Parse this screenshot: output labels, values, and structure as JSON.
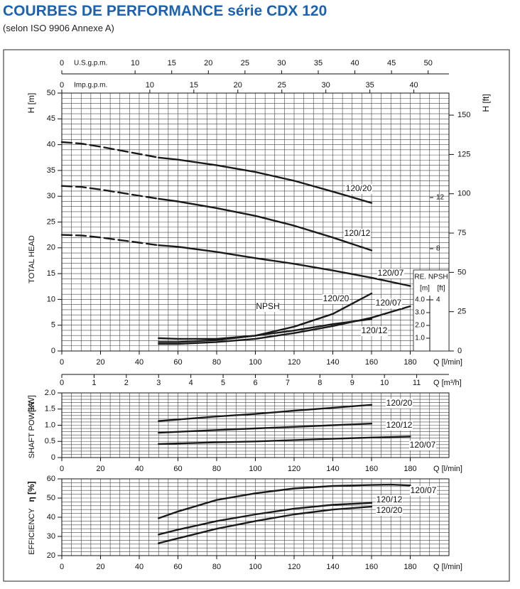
{
  "title": "COURBES DE PERFORMANCE série CDX 120",
  "subtitle": "(selon ISO 9906 Annexe A)",
  "chart_data": [
    {
      "type": "line",
      "ylabel": "H [m]",
      "ylabel2": "H [ft]",
      "side_label": "TOTAL HEAD",
      "xlabel": "Q [l/min]",
      "xlim": [
        0,
        200
      ],
      "xticks": [
        0,
        20,
        40,
        60,
        80,
        100,
        120,
        140,
        160,
        180
      ],
      "ylim": [
        0,
        50
      ],
      "yticks": [
        0,
        5,
        10,
        15,
        20,
        25,
        30,
        35,
        40,
        45,
        50
      ],
      "grid": {
        "x_step": 5,
        "y_step": 1
      },
      "ft_axis": {
        "lim": [
          0,
          164.04
        ],
        "ticks": [
          0,
          25,
          50,
          75,
          100,
          125,
          150
        ]
      },
      "top_axes": [
        {
          "label": "U.S.g.p.m.",
          "lim": [
            0,
            52.84
          ],
          "ticks": [
            0,
            10,
            15,
            20,
            25,
            30,
            35,
            40,
            45,
            50
          ]
        },
        {
          "label": "Imp.g.p.m.",
          "lim": [
            0,
            43.99
          ],
          "ticks": [
            0,
            10,
            15,
            20,
            25,
            30,
            35,
            40
          ]
        }
      ],
      "m3h_axis": {
        "label": "Q [m³/h]",
        "lim": [
          0,
          12
        ],
        "ticks": [
          0,
          1,
          2,
          3,
          4,
          5,
          6,
          7,
          8,
          9,
          10,
          11
        ]
      },
      "series": [
        {
          "name": "120/20",
          "color": "#1a1a1a",
          "x": [
            50,
            60,
            80,
            100,
            120,
            140,
            160
          ],
          "values": [
            37.5,
            37.1,
            36.0,
            34.7,
            33.0,
            30.9,
            28.7
          ],
          "extrapolated_x": [
            0,
            10,
            20,
            30,
            40,
            50
          ],
          "extrapolated_values": [
            40.5,
            40.2,
            39.6,
            38.9,
            38.2,
            37.5
          ]
        },
        {
          "name": "120/12",
          "color": "#1a1a1a",
          "x": [
            50,
            60,
            80,
            100,
            120,
            140,
            160
          ],
          "values": [
            29.5,
            29.0,
            27.7,
            26.2,
            24.3,
            22.0,
            19.5
          ],
          "extrapolated_x": [
            0,
            10,
            20,
            30,
            40,
            50
          ],
          "extrapolated_values": [
            32.0,
            31.8,
            31.3,
            30.7,
            30.1,
            29.5
          ]
        },
        {
          "name": "120/07",
          "color": "#1a1a1a",
          "x": [
            50,
            60,
            80,
            100,
            120,
            140,
            160,
            180
          ],
          "values": [
            20.5,
            20.2,
            19.2,
            18.0,
            16.9,
            15.6,
            14.2,
            12.6
          ],
          "extrapolated_x": [
            0,
            10,
            20,
            30,
            40,
            50
          ],
          "extrapolated_values": [
            22.5,
            22.4,
            22.0,
            21.5,
            21.0,
            20.5
          ]
        }
      ],
      "npsh": {
        "label": "NPSH",
        "axis_title": "RE. NPSH",
        "m_label": "[m]",
        "ft_label": "[ft]",
        "ylim": [
          0,
          4
        ],
        "yticks": [
          {
            "value": 1,
            "label": "1.0"
          },
          {
            "value": 2,
            "label": "2.0"
          },
          {
            "value": 3,
            "label": "3.0"
          },
          {
            "value": 4,
            "label": "4.0"
          }
        ],
        "ft_lim": [
          0,
          13.12
        ],
        "ft_ticks": [
          4,
          8,
          12
        ],
        "series": [
          {
            "name": "120/20",
            "color": "#1a1a1a",
            "x": [
              50,
              60,
              80,
              100,
              120,
              140,
              160
            ],
            "values": [
              0.7,
              0.7,
              0.85,
              1.2,
              1.9,
              2.9,
              4.5
            ]
          },
          {
            "name": "120/07",
            "color": "#1a1a1a",
            "x": [
              50,
              60,
              80,
              100,
              120,
              140,
              160,
              180
            ],
            "values": [
              0.55,
              0.55,
              0.7,
              0.95,
              1.4,
              1.95,
              2.6,
              3.5
            ]
          },
          {
            "name": "120/12",
            "color": "#1a1a1a",
            "x": [
              50,
              60,
              80,
              100,
              120,
              140,
              160
            ],
            "values": [
              1.0,
              0.95,
              0.95,
              1.2,
              1.6,
              2.1,
              2.5
            ]
          }
        ]
      }
    },
    {
      "type": "line",
      "ylabel": "[kW]",
      "side_label": "SHAFT POWER",
      "xlabel": "Q [l/min]",
      "xlim": [
        0,
        200
      ],
      "xticks": [
        0,
        20,
        40,
        60,
        80,
        100,
        120,
        140,
        160,
        180
      ],
      "ylim": [
        0,
        2
      ],
      "yticks": [
        0,
        0.5,
        {
          "value": 1,
          "label": "1.0"
        },
        1.5,
        {
          "value": 2,
          "label": "2.0"
        }
      ],
      "grid": {
        "x_step": 5,
        "y_step": 0.1
      },
      "series": [
        {
          "name": "120/20",
          "color": "#1a1a1a",
          "x": [
            50,
            80,
            100,
            120,
            140,
            160
          ],
          "values": [
            1.13,
            1.27,
            1.35,
            1.45,
            1.54,
            1.63
          ]
        },
        {
          "name": "120/12",
          "color": "#1a1a1a",
          "x": [
            50,
            80,
            100,
            120,
            140,
            160
          ],
          "values": [
            0.77,
            0.85,
            0.9,
            0.95,
            1.0,
            1.05
          ]
        },
        {
          "name": "120/07",
          "color": "#1a1a1a",
          "x": [
            50,
            80,
            100,
            120,
            140,
            160,
            180
          ],
          "values": [
            0.42,
            0.47,
            0.5,
            0.54,
            0.58,
            0.62,
            0.65
          ]
        }
      ]
    },
    {
      "type": "line",
      "ylabel": "η [%]",
      "side_label": "EFFICIENCY",
      "xlabel": "Q [l/min]",
      "xlim": [
        0,
        200
      ],
      "xticks": [
        0,
        20,
        40,
        60,
        80,
        100,
        120,
        140,
        160,
        180
      ],
      "ylim": [
        20,
        60
      ],
      "yticks": [
        20,
        30,
        40,
        50,
        60
      ],
      "grid": {
        "x_step": 5,
        "y_step": 2
      },
      "series": [
        {
          "name": "120/07",
          "color": "#1a1a1a",
          "x": [
            50,
            60,
            80,
            100,
            120,
            140,
            160,
            170,
            180
          ],
          "values": [
            39.5,
            43,
            49,
            52.5,
            55,
            56.3,
            56.8,
            57,
            56.6
          ]
        },
        {
          "name": "120/12",
          "color": "#1a1a1a",
          "x": [
            50,
            60,
            80,
            100,
            120,
            140,
            160
          ],
          "values": [
            31,
            33.5,
            38,
            41.5,
            44.5,
            46.5,
            47.5
          ]
        },
        {
          "name": "120/20",
          "color": "#1a1a1a",
          "x": [
            50,
            60,
            80,
            100,
            120,
            140,
            160
          ],
          "values": [
            26.5,
            29,
            34,
            38,
            41.5,
            44,
            45.5
          ]
        }
      ]
    }
  ]
}
